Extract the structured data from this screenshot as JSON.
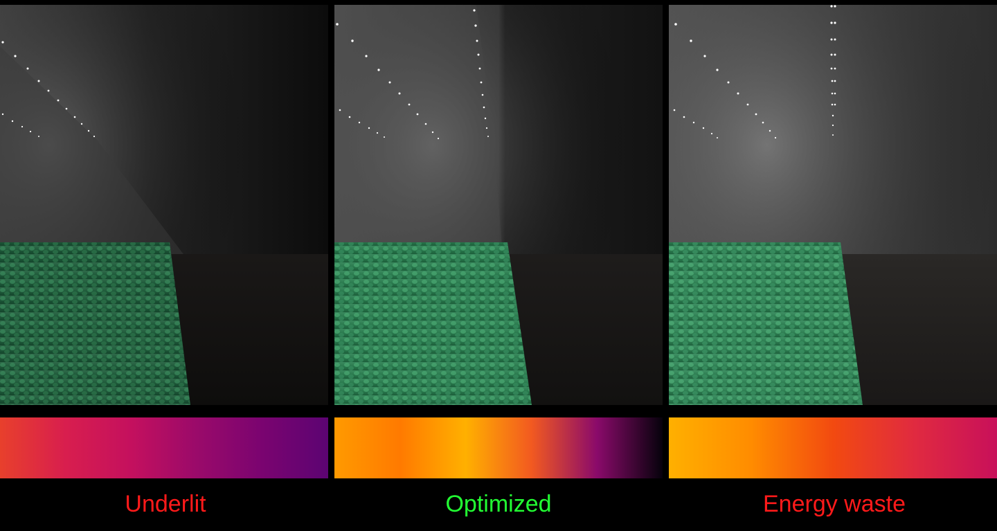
{
  "panels": [
    {
      "label": "Underlit",
      "label_color": "#ff1a1a",
      "heatmap_colors": [
        "#e8402c",
        "#d81e4e",
        "#c4105e",
        "#9a0a6a",
        "#7a0470",
        "#5c0472"
      ]
    },
    {
      "label": "Optimized",
      "label_color": "#22ff33",
      "heatmap_colors": [
        "#ff9a00",
        "#ff7a00",
        "#ffb000",
        "#f25a20",
        "#8a0a6a",
        "#06020c"
      ]
    },
    {
      "label": "Energy waste",
      "label_color": "#ff1a1a",
      "heatmap_colors": [
        "#ffb000",
        "#ff8c00",
        "#f24a10",
        "#e02a40",
        "#c8105a"
      ]
    }
  ]
}
